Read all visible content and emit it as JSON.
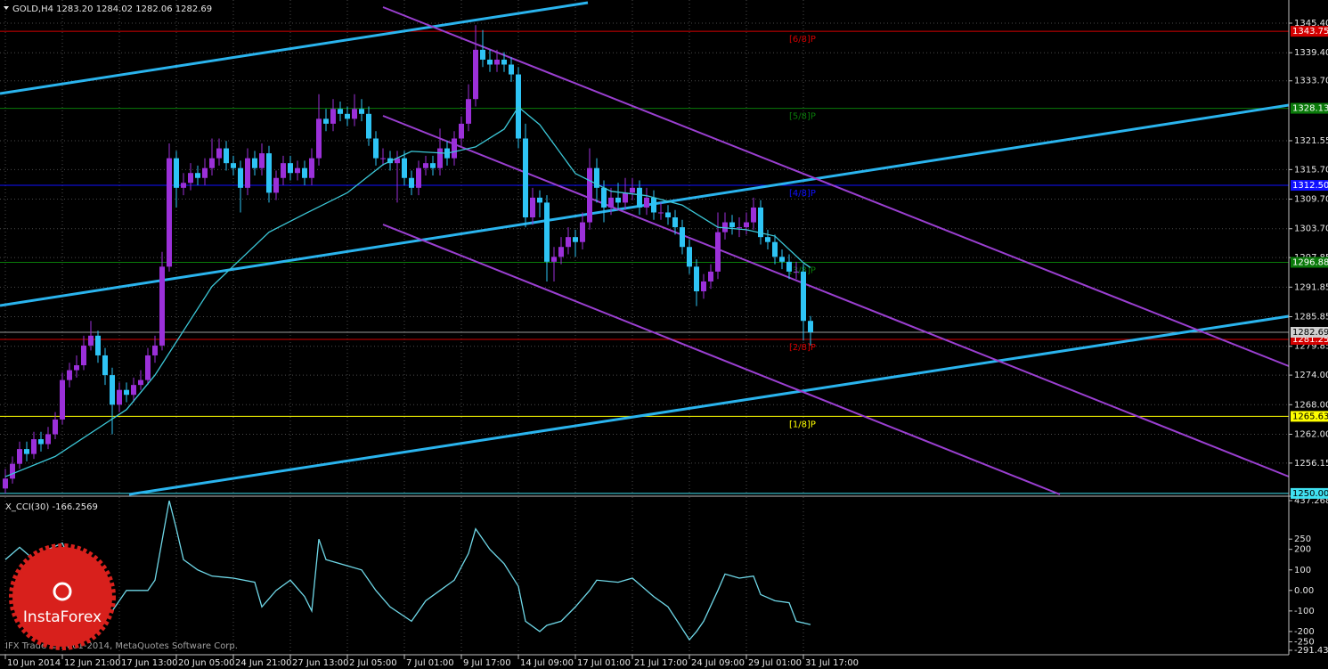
{
  "chart_data": {
    "type": "candlestick",
    "title": "GOLD,H4",
    "ohlc": [
      {
        "value": 1283.2,
        "label": "1283.20"
      },
      1284.02,
      1282.06,
      1282.69
    ],
    "bull_color": "#9b30d9",
    "bear_color": "#2ec4f5",
    "grid": true,
    "ylim": [
      1249.8,
      1350.1
    ],
    "yticks": [
      {
        "value": 1345.4,
        "label": "1345.40"
      },
      {
        "value": 1339.4,
        "label": "1339.40"
      },
      {
        "value": 1333.7,
        "label": "1333.70"
      },
      1321.55,
      {
        "value": 1315.7,
        "label": "1315.70"
      },
      {
        "value": 1309.7,
        "label": "1309.70"
      },
      {
        "value": 1303.7,
        "label": "1303.70"
      },
      1297.85,
      1291.85,
      1285.85,
      1279.85,
      {
        "value": 1274,
        "label": "1274.00"
      },
      {
        "value": 1268,
        "label": "1268.00"
      },
      {
        "value": 1262,
        "label": "1262.00"
      },
      1256.15
    ],
    "categories": [
      "10 Jun 2014",
      null,
      null,
      null,
      null,
      null,
      null,
      null,
      "12 Jun 21:00",
      null,
      null,
      null,
      null,
      null,
      null,
      null,
      "17 Jun 13:00",
      null,
      null,
      null,
      null,
      null,
      null,
      null,
      "20 Jun 05:00",
      null,
      null,
      null,
      null,
      null,
      null,
      null,
      "24 Jun 21:00",
      null,
      null,
      null,
      null,
      null,
      null,
      null,
      "27 Jun 13:00",
      null,
      null,
      null,
      null,
      null,
      null,
      null,
      "2 Jul 05:00",
      null,
      null,
      null,
      null,
      null,
      null,
      null,
      "7 Jul 01:00",
      null,
      null,
      null,
      null,
      null,
      null,
      null,
      "9 Jul 17:00",
      null,
      null,
      null,
      null,
      null,
      null,
      null,
      "14 Jul 09:00",
      null,
      null,
      null,
      null,
      null,
      null,
      null,
      "17 Jul 01:00",
      null,
      null,
      null,
      null,
      null,
      null,
      null,
      "21 Jul 17:00",
      null,
      null,
      null,
      null,
      null,
      null,
      null,
      "24 Jul 09:00",
      null,
      null,
      null,
      null,
      null,
      null,
      null,
      "29 Jul 01:00",
      null,
      null,
      null,
      null,
      null,
      null,
      null,
      "31 Jul 17:00",
      null
    ],
    "candles": [
      [
        1251,
        1255,
        1250,
        1253
      ],
      [
        1253,
        1257.5,
        1252,
        1256
      ],
      [
        1256,
        1260.5,
        1255,
        1259
      ],
      [
        1259,
        1260.5,
        1256.5,
        1258
      ],
      [
        1258,
        1262.5,
        1257,
        1261
      ],
      [
        1261,
        1262.5,
        1258.5,
        1260
      ],
      [
        1260,
        1263.5,
        1259,
        1262
      ],
      [
        1262,
        1266.5,
        1261,
        1265
      ],
      [
        1265,
        1274.5,
        1264,
        1273
      ],
      [
        1273,
        1276.5,
        1271.5,
        1275
      ],
      [
        1275,
        1278,
        1273.5,
        1276
      ],
      [
        1276,
        1282,
        1275,
        1280
      ],
      [
        1280,
        1285,
        1279,
        1282
      ],
      [
        1282,
        1283,
        1276.5,
        1278
      ],
      [
        1278,
        1279.5,
        1272,
        1274
      ],
      [
        1274,
        1275.5,
        1262,
        1268
      ],
      [
        1268,
        1272.5,
        1266.5,
        1271
      ],
      [
        1271,
        1272.5,
        1268.5,
        1270
      ],
      [
        1270,
        1273.5,
        1268.5,
        1272
      ],
      [
        1272,
        1275,
        1271,
        1273
      ],
      [
        1273,
        1279.5,
        1272,
        1278
      ],
      [
        1278,
        1282,
        1276.5,
        1280
      ],
      [
        1280,
        1299,
        1279,
        1296
      ],
      [
        1296,
        1321,
        1295,
        1318
      ],
      [
        1318,
        1319.5,
        1308,
        1312
      ],
      [
        1312,
        1315,
        1310.5,
        1313
      ],
      [
        1313,
        1317,
        1311.5,
        1315
      ],
      [
        1315,
        1316.5,
        1312.5,
        1314
      ],
      [
        1314,
        1318,
        1312.5,
        1316
      ],
      [
        1316,
        1322,
        1314.5,
        1318
      ],
      [
        1318,
        1322,
        1316.5,
        1320
      ],
      [
        1320,
        1321.5,
        1315.5,
        1317
      ],
      [
        1317,
        1318.5,
        1314.5,
        1316
      ],
      [
        1316,
        1317.5,
        1307,
        1312
      ],
      [
        1312,
        1320,
        1310.5,
        1318
      ],
      [
        1318,
        1319.5,
        1314.5,
        1316
      ],
      [
        1316,
        1321,
        1314.5,
        1319
      ],
      [
        1319,
        1320.5,
        1309,
        1311
      ],
      [
        1311,
        1315.5,
        1309.5,
        1314
      ],
      [
        1314,
        1318.5,
        1312.5,
        1317
      ],
      [
        1317,
        1318.5,
        1313.5,
        1315
      ],
      [
        1315,
        1317.5,
        1313.5,
        1316
      ],
      [
        1316,
        1317.5,
        1312.5,
        1314
      ],
      [
        1314,
        1320,
        1312.5,
        1318
      ],
      [
        1318,
        1331,
        1316.5,
        1326
      ],
      [
        1326,
        1328,
        1323.5,
        1325
      ],
      [
        1325,
        1330,
        1323.5,
        1328
      ],
      [
        1328,
        1329.5,
        1325.5,
        1327
      ],
      [
        1327,
        1328.5,
        1324.5,
        1326
      ],
      [
        1326,
        1331,
        1324.5,
        1328
      ],
      [
        1328,
        1330,
        1325.5,
        1327
      ],
      [
        1327,
        1328.5,
        1320.5,
        1322
      ],
      [
        1322,
        1323.5,
        1316.5,
        1318
      ],
      [
        1318,
        1320,
        1316.5,
        1318
      ],
      [
        1318,
        1319.5,
        1315.5,
        1317
      ],
      [
        1317,
        1319.5,
        1309,
        1318
      ],
      [
        1318,
        1319.5,
        1312.5,
        1314
      ],
      [
        1314,
        1315.5,
        1310.5,
        1312
      ],
      [
        1312,
        1317.5,
        1310.5,
        1316
      ],
      [
        1316,
        1318.5,
        1314.5,
        1317
      ],
      [
        1317,
        1318.5,
        1314.5,
        1316
      ],
      [
        1316,
        1324,
        1314.5,
        1320
      ],
      [
        1320,
        1321.5,
        1316.5,
        1318
      ],
      [
        1318,
        1323.5,
        1316.5,
        1322
      ],
      [
        1322,
        1326.5,
        1320.5,
        1325
      ],
      [
        1325,
        1333,
        1323.5,
        1330
      ],
      [
        1330,
        1345,
        1328.5,
        1340
      ],
      [
        1340,
        1344,
        1336.5,
        1338
      ],
      [
        1338,
        1340,
        1335.5,
        1337
      ],
      [
        1337,
        1340,
        1335.5,
        1338
      ],
      [
        1338,
        1339.5,
        1335.5,
        1337
      ],
      [
        1337,
        1338.5,
        1333.5,
        1335
      ],
      [
        1335,
        1336.5,
        1320,
        1322
      ],
      [
        1322,
        1325,
        1304,
        1306
      ],
      [
        1306,
        1312,
        1304.5,
        1310
      ],
      [
        1310,
        1311.5,
        1306,
        1309
      ],
      [
        1309,
        1310.5,
        1293,
        1297
      ],
      [
        1297,
        1300,
        1293,
        1298
      ],
      [
        1298,
        1302,
        1296.5,
        1300
      ],
      [
        1300,
        1304,
        1298.5,
        1302
      ],
      [
        1302,
        1303.5,
        1298,
        1301
      ],
      [
        1301,
        1307,
        1299.5,
        1305
      ],
      [
        1305,
        1320,
        1303.5,
        1316
      ],
      [
        1316,
        1318,
        1309,
        1312
      ],
      [
        1312,
        1313.5,
        1305,
        1308
      ],
      [
        1308,
        1312,
        1306.5,
        1310
      ],
      [
        1310,
        1313,
        1307.5,
        1309
      ],
      [
        1309,
        1314,
        1307.5,
        1311
      ],
      [
        1311,
        1314,
        1309.5,
        1312
      ],
      [
        1312,
        1313.5,
        1306.5,
        1308
      ],
      [
        1308,
        1312,
        1306.5,
        1310
      ],
      [
        1310,
        1311.5,
        1305.5,
        1307
      ],
      [
        1307,
        1309,
        1305.5,
        1307
      ],
      [
        1307,
        1308.5,
        1304.5,
        1306
      ],
      [
        1306,
        1307.5,
        1302.5,
        1304
      ],
      [
        1304,
        1305.5,
        1298.5,
        1300
      ],
      [
        1300,
        1301.5,
        1294.5,
        1296
      ],
      [
        1296,
        1297.5,
        1288,
        1291
      ],
      [
        1291,
        1294.5,
        1289.5,
        1293
      ],
      [
        1293,
        1296.5,
        1291.5,
        1295
      ],
      [
        1295,
        1307,
        1293.5,
        1303
      ],
      [
        1303,
        1307,
        1301.5,
        1305
      ],
      [
        1305,
        1306.5,
        1302.5,
        1304
      ],
      [
        1304,
        1306,
        1302,
        1304
      ],
      [
        1304,
        1307,
        1302.5,
        1305
      ],
      [
        1305,
        1310,
        1303.5,
        1308
      ],
      [
        1308,
        1309.5,
        1300.5,
        1302
      ],
      [
        1302,
        1303.5,
        1299.5,
        1301
      ],
      [
        1301,
        1302.5,
        1296.5,
        1298
      ],
      [
        1298,
        1299.5,
        1295.5,
        1297
      ],
      [
        1297,
        1298.5,
        1293.5,
        1295
      ],
      [
        1295,
        1297,
        1293.5,
        1295
      ],
      [
        1295,
        1296.5,
        1281,
        1285
      ],
      [
        1285,
        1286,
        1280,
        1282.69
      ]
    ],
    "current_price": 1282.69,
    "levels": [
      {
        "value": 1343.75,
        "label": "[6/8]P",
        "color": "#d40000"
      },
      {
        "value": 1328.13,
        "label": "[5/8]P",
        "color": "#0a7a0a"
      },
      {
        "value": 1312.5,
        "value_label": "1312.50",
        "label": "[4/8]P",
        "color": "#1010ff"
      },
      {
        "value": 1296.88,
        "label": "[3/8]P",
        "color": "#0a7a0a"
      },
      {
        "value": 1281.25,
        "label": "[2/8]P",
        "color": "#d40000"
      },
      {
        "value": 1265.63,
        "label": "[1/8]P",
        "color": "#ffff00"
      },
      {
        "value": 1250,
        "value_label": "1250.00",
        "color": "#40e0f0"
      }
    ],
    "ma": {
      "color": "#3cc8d8",
      "x": [
        0,
        7,
        17,
        21,
        25,
        29,
        33,
        37,
        42,
        48,
        53,
        57,
        62,
        66,
        70,
        72,
        75,
        80,
        85,
        90,
        95,
        100,
        104,
        108,
        112,
        113
      ],
      "values": [
        1253.4,
        1257.5,
        1267,
        1274,
        1283,
        1292,
        1297.5,
        1303,
        1306.7,
        1311,
        1316.7,
        1319.4,
        1319,
        1320.3,
        1323.9,
        1328.4,
        1324.8,
        1314.9,
        1311.3,
        1310.4,
        1308.5,
        1304,
        1303.5,
        1302.2,
        1296.8,
        1295.8
      ]
    },
    "cci": {
      "name": "X_CCI(30)",
      "last": -166.2569,
      "color": "#6fd8e8",
      "ylim": [
        -291.4354,
        437.2687
      ],
      "yticks": [
        437.2687,
        250,
        200,
        100,
        {
          "value": 0,
          "label": "0.00"
        },
        -100,
        -200,
        -250,
        -291.4354
      ],
      "x": [
        0,
        2,
        4,
        6,
        8,
        9,
        11,
        13,
        15,
        17,
        20,
        21,
        23,
        24,
        25,
        27,
        29,
        32,
        35,
        36,
        38,
        40,
        42,
        43,
        44,
        45,
        48,
        50,
        52,
        54,
        57,
        59,
        61,
        63,
        65,
        66,
        68,
        70,
        72,
        73,
        75,
        76,
        78,
        80,
        82,
        83,
        86,
        88,
        91,
        93,
        96,
        97,
        98,
        100,
        101,
        103,
        105,
        106,
        108,
        110,
        111,
        113
      ],
      "values": [
        150,
        210,
        150,
        200,
        230,
        150,
        100,
        -50,
        -100,
        0,
        0,
        50,
        437,
        300,
        150,
        100,
        70,
        60,
        40,
        -80,
        0,
        50,
        -30,
        -100,
        250,
        150,
        120,
        100,
        0,
        -80,
        -150,
        -50,
        0,
        50,
        180,
        300,
        200,
        130,
        20,
        -150,
        -200,
        -170,
        -150,
        -80,
        0,
        50,
        40,
        60,
        -30,
        -80,
        -240,
        -200,
        -150,
        0,
        80,
        60,
        70,
        -20,
        -50,
        -60,
        -150,
        -166.2569
      ]
    },
    "copyright": "IFX Trade © 2001-2014, MetaQuotes Software Corp.",
    "logo": "InstaForex"
  }
}
